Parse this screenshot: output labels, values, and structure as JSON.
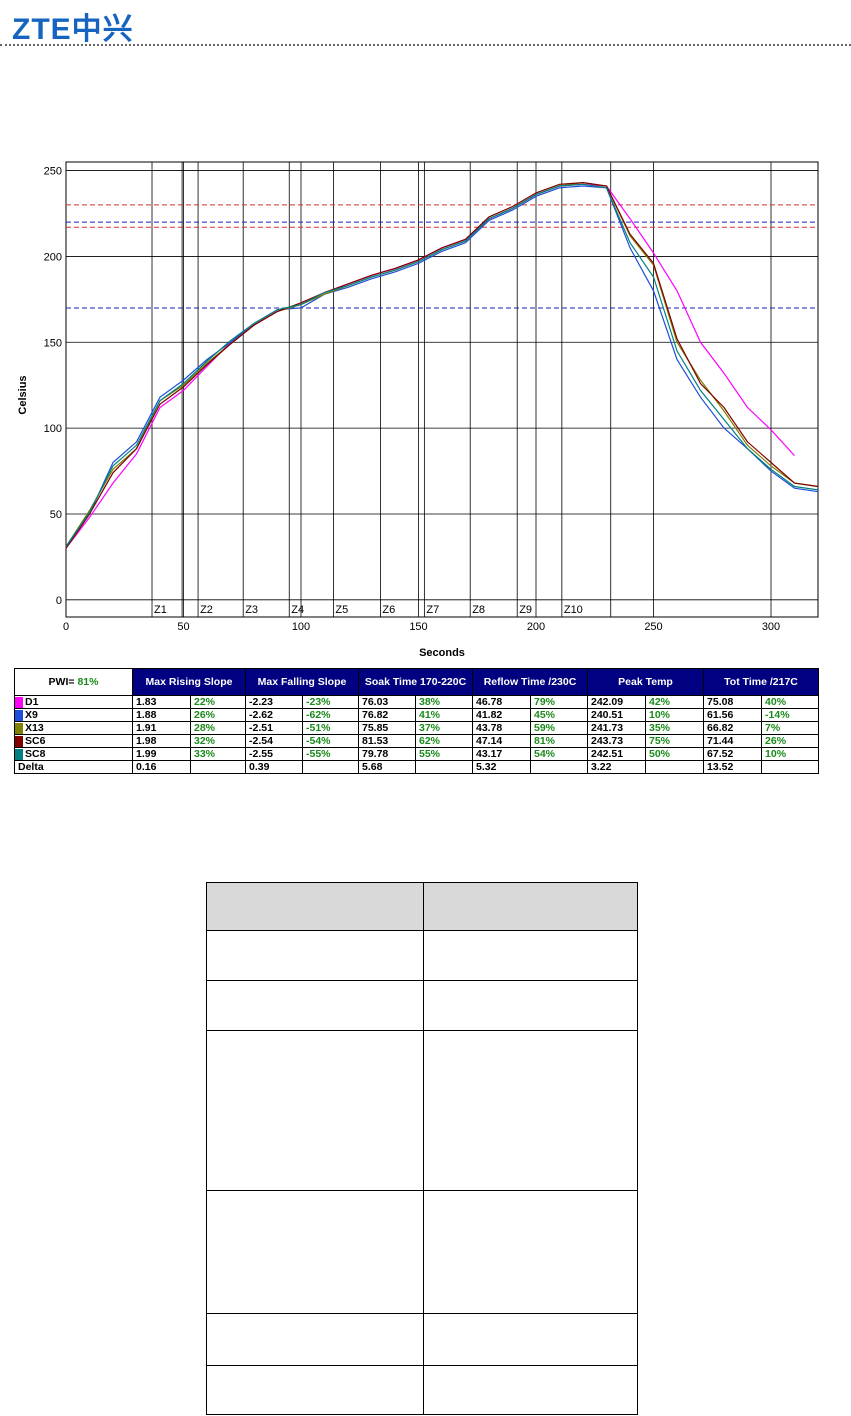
{
  "header": {
    "logo": "ZTE中兴"
  },
  "chart_data": {
    "type": "line",
    "x_label": "Seconds",
    "y_label": "Celsius",
    "xlim": [
      0,
      320
    ],
    "ylim": [
      -10,
      255
    ],
    "xticks": [
      0,
      50,
      100,
      150,
      200,
      250,
      300
    ],
    "yticks": [
      0,
      50,
      100,
      150,
      200,
      250
    ],
    "grid": true,
    "x": [
      0,
      10,
      20,
      30,
      40,
      50,
      60,
      70,
      80,
      90,
      100,
      110,
      120,
      130,
      140,
      150,
      160,
      170,
      180,
      190,
      200,
      210,
      220,
      230,
      240,
      250,
      260,
      270,
      280,
      290,
      300,
      310,
      320
    ],
    "series": [
      {
        "name": "D1",
        "color": "#ff00ff",
        "values": [
          30,
          48,
          68,
          85,
          112,
          122,
          136,
          150,
          160,
          168,
          172,
          179,
          184,
          189,
          193,
          198,
          205,
          210,
          222,
          228,
          236,
          241,
          242,
          241,
          222,
          202,
          180,
          150,
          132,
          112,
          99,
          84,
          null
        ]
      },
      {
        "name": "X9",
        "color": "#1f4fd8",
        "values": [
          30,
          50,
          80,
          92,
          118,
          128,
          140,
          150,
          161,
          169,
          170,
          178,
          182,
          187,
          191,
          196,
          203,
          208,
          221,
          227,
          235,
          240,
          241,
          240,
          205,
          180,
          140,
          118,
          100,
          88,
          75,
          65,
          63
        ]
      },
      {
        "name": "X13",
        "color": "#808000",
        "values": [
          31,
          52,
          76,
          88,
          116,
          125,
          138,
          149,
          160,
          168,
          172,
          178,
          183,
          188,
          192,
          197,
          204,
          209,
          222,
          228,
          236,
          241,
          243,
          241,
          212,
          195,
          150,
          128,
          110,
          90,
          78,
          68,
          66
        ]
      },
      {
        "name": "SC6",
        "color": "#800000",
        "values": [
          30,
          50,
          74,
          88,
          114,
          124,
          137,
          149,
          160,
          168,
          173,
          179,
          184,
          189,
          193,
          198,
          205,
          210,
          223,
          229,
          237,
          242,
          243,
          241,
          213,
          196,
          152,
          126,
          112,
          92,
          80,
          68,
          66
        ]
      },
      {
        "name": "SC8",
        "color": "#008080",
        "values": [
          31,
          51,
          78,
          90,
          116,
          126,
          139,
          151,
          161,
          169,
          172,
          179,
          183,
          188,
          192,
          197,
          204,
          209,
          222,
          228,
          236,
          241,
          242,
          240,
          208,
          188,
          145,
          122,
          105,
          88,
          76,
          66,
          64
        ]
      }
    ],
    "ref_lines": [
      {
        "value": 230,
        "color": "#d03030"
      },
      {
        "value": 220,
        "color": "#2020c0"
      },
      {
        "value": 217,
        "color": "#d03030"
      },
      {
        "value": 170,
        "color": "#2020c0"
      }
    ],
    "zone_lines": [
      36.6,
      49.4,
      56.2,
      75.4,
      95,
      113.8,
      133.8,
      152.5,
      172,
      192,
      211,
      231.8
    ],
    "zone_labels": [
      {
        "value": 36.6,
        "label": "Z1"
      },
      {
        "value": 56.2,
        "label": "Z2"
      },
      {
        "value": 75.4,
        "label": "Z3"
      },
      {
        "value": 95,
        "label": "Z4"
      },
      {
        "value": 113.8,
        "label": "Z5"
      },
      {
        "value": 133.8,
        "label": "Z6"
      },
      {
        "value": 152.5,
        "label": "Z7"
      },
      {
        "value": 172,
        "label": "Z8"
      },
      {
        "value": 192,
        "label": "Z9"
      },
      {
        "value": 211,
        "label": "Z10"
      }
    ]
  },
  "table": {
    "pwi_label": "PWI=",
    "pwi_value": "81%",
    "headers": [
      "Max Rising Slope",
      "Max Falling Slope",
      "Soak Time 170-220C",
      "Reflow Time /230C",
      "Peak Temp",
      "Tot Time /217C"
    ],
    "rows": [
      {
        "name": "D1",
        "color": "#ff00ff",
        "cells": [
          "1.83",
          "22%",
          "-2.23",
          "-23%",
          "76.03",
          "38%",
          "46.78",
          "79%",
          "242.09",
          "42%",
          "75.08",
          "40%"
        ]
      },
      {
        "name": "X9",
        "color": "#1f4fd8",
        "cells": [
          "1.88",
          "26%",
          "-2.62",
          "-62%",
          "76.82",
          "41%",
          "41.82",
          "45%",
          "240.51",
          "10%",
          "61.56",
          "-14%"
        ]
      },
      {
        "name": "X13",
        "color": "#808000",
        "cells": [
          "1.91",
          "28%",
          "-2.51",
          "-51%",
          "75.85",
          "37%",
          "43.78",
          "59%",
          "241.73",
          "35%",
          "66.82",
          "7%"
        ]
      },
      {
        "name": "SC6",
        "color": "#800000",
        "cells": [
          "1.98",
          "32%",
          "-2.54",
          "-54%",
          "81.53",
          "62%",
          "47.14",
          "81%",
          "243.73",
          "75%",
          "71.44",
          "26%"
        ]
      },
      {
        "name": "SC8",
        "color": "#008080",
        "cells": [
          "1.99",
          "33%",
          "-2.55",
          "-55%",
          "79.78",
          "55%",
          "43.17",
          "54%",
          "242.51",
          "50%",
          "67.52",
          "10%"
        ]
      }
    ],
    "delta": {
      "name": "Delta",
      "values": [
        "0.16",
        "0.39",
        "5.68",
        "5.32",
        "3.22",
        "13.52"
      ]
    }
  }
}
